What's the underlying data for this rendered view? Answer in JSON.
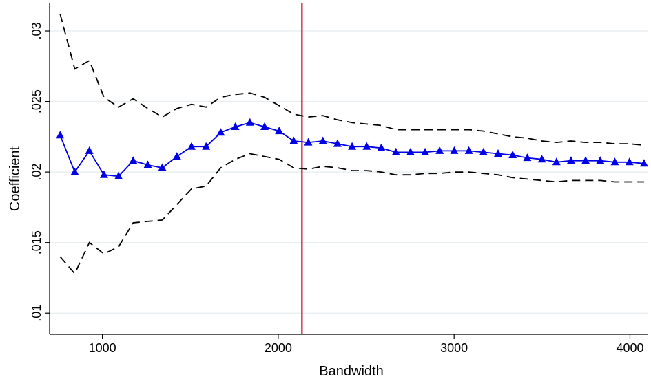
{
  "chart_data": {
    "type": "line",
    "title": "",
    "xlabel": "Bandwidth",
    "ylabel": "Coefficient",
    "xlim": [
      700,
      4100
    ],
    "ylim": [
      0.0085,
      0.032
    ],
    "x_ticks": [
      1000,
      2000,
      3000,
      4000
    ],
    "x_tick_labels": [
      "1000",
      "2000",
      "3000",
      "4000"
    ],
    "y_ticks": [
      0.01,
      0.015,
      0.02,
      0.025,
      0.03
    ],
    "y_tick_labels": [
      ".01",
      ".015",
      ".02",
      ".025",
      ".03"
    ],
    "grid": "horizontal",
    "reference_line": {
      "x": 2135,
      "color": "#c8102e"
    },
    "x": [
      760,
      843,
      926,
      1009,
      1092,
      1175,
      1258,
      1341,
      1424,
      1507,
      1590,
      1673,
      1756,
      1839,
      1922,
      2005,
      2088,
      2171,
      2254,
      2337,
      2420,
      2503,
      2586,
      2669,
      2752,
      2835,
      2918,
      3001,
      3084,
      3167,
      3250,
      3333,
      3416,
      3499,
      3582,
      3665,
      3748,
      3831,
      3914,
      3997,
      4080
    ],
    "series": [
      {
        "name": "",
        "role": "estimate",
        "color": "#0000e6",
        "marker": "triangle",
        "values": [
          0.0226,
          0.02,
          0.0215,
          0.0198,
          0.0197,
          0.0208,
          0.0205,
          0.0203,
          0.0211,
          0.0218,
          0.0218,
          0.0228,
          0.0232,
          0.0235,
          0.0232,
          0.0229,
          0.0222,
          0.0221,
          0.0222,
          0.022,
          0.0218,
          0.0218,
          0.0217,
          0.0214,
          0.0214,
          0.0214,
          0.0215,
          0.0215,
          0.0215,
          0.0214,
          0.0213,
          0.0212,
          0.021,
          0.0209,
          0.0207,
          0.0208,
          0.0208,
          0.0208,
          0.0207,
          0.0207,
          0.0206
        ]
      },
      {
        "name": "",
        "role": "upper-ci",
        "color": "#000000",
        "marker": "none",
        "dash": "dashed",
        "values": [
          0.0312,
          0.0273,
          0.0279,
          0.0253,
          0.0246,
          0.0252,
          0.0245,
          0.0239,
          0.0245,
          0.0248,
          0.0246,
          0.0253,
          0.0255,
          0.0256,
          0.0253,
          0.0247,
          0.0241,
          0.0239,
          0.024,
          0.0237,
          0.0235,
          0.0234,
          0.0233,
          0.023,
          0.023,
          0.023,
          0.023,
          0.023,
          0.023,
          0.0229,
          0.0227,
          0.0225,
          0.0224,
          0.0222,
          0.0221,
          0.0222,
          0.0221,
          0.0221,
          0.022,
          0.022,
          0.0219
        ]
      },
      {
        "name": "",
        "role": "lower-ci",
        "color": "#000000",
        "marker": "none",
        "dash": "dashed",
        "values": [
          0.014,
          0.0128,
          0.015,
          0.0142,
          0.0147,
          0.0164,
          0.0165,
          0.0166,
          0.0177,
          0.0188,
          0.019,
          0.0203,
          0.0209,
          0.0213,
          0.0211,
          0.0209,
          0.0203,
          0.0202,
          0.0204,
          0.0203,
          0.0201,
          0.0201,
          0.02,
          0.0198,
          0.0198,
          0.0199,
          0.0199,
          0.02,
          0.02,
          0.0199,
          0.0198,
          0.0196,
          0.0195,
          0.0194,
          0.0193,
          0.0194,
          0.0194,
          0.0194,
          0.0193,
          0.0193,
          0.0193
        ]
      }
    ]
  }
}
